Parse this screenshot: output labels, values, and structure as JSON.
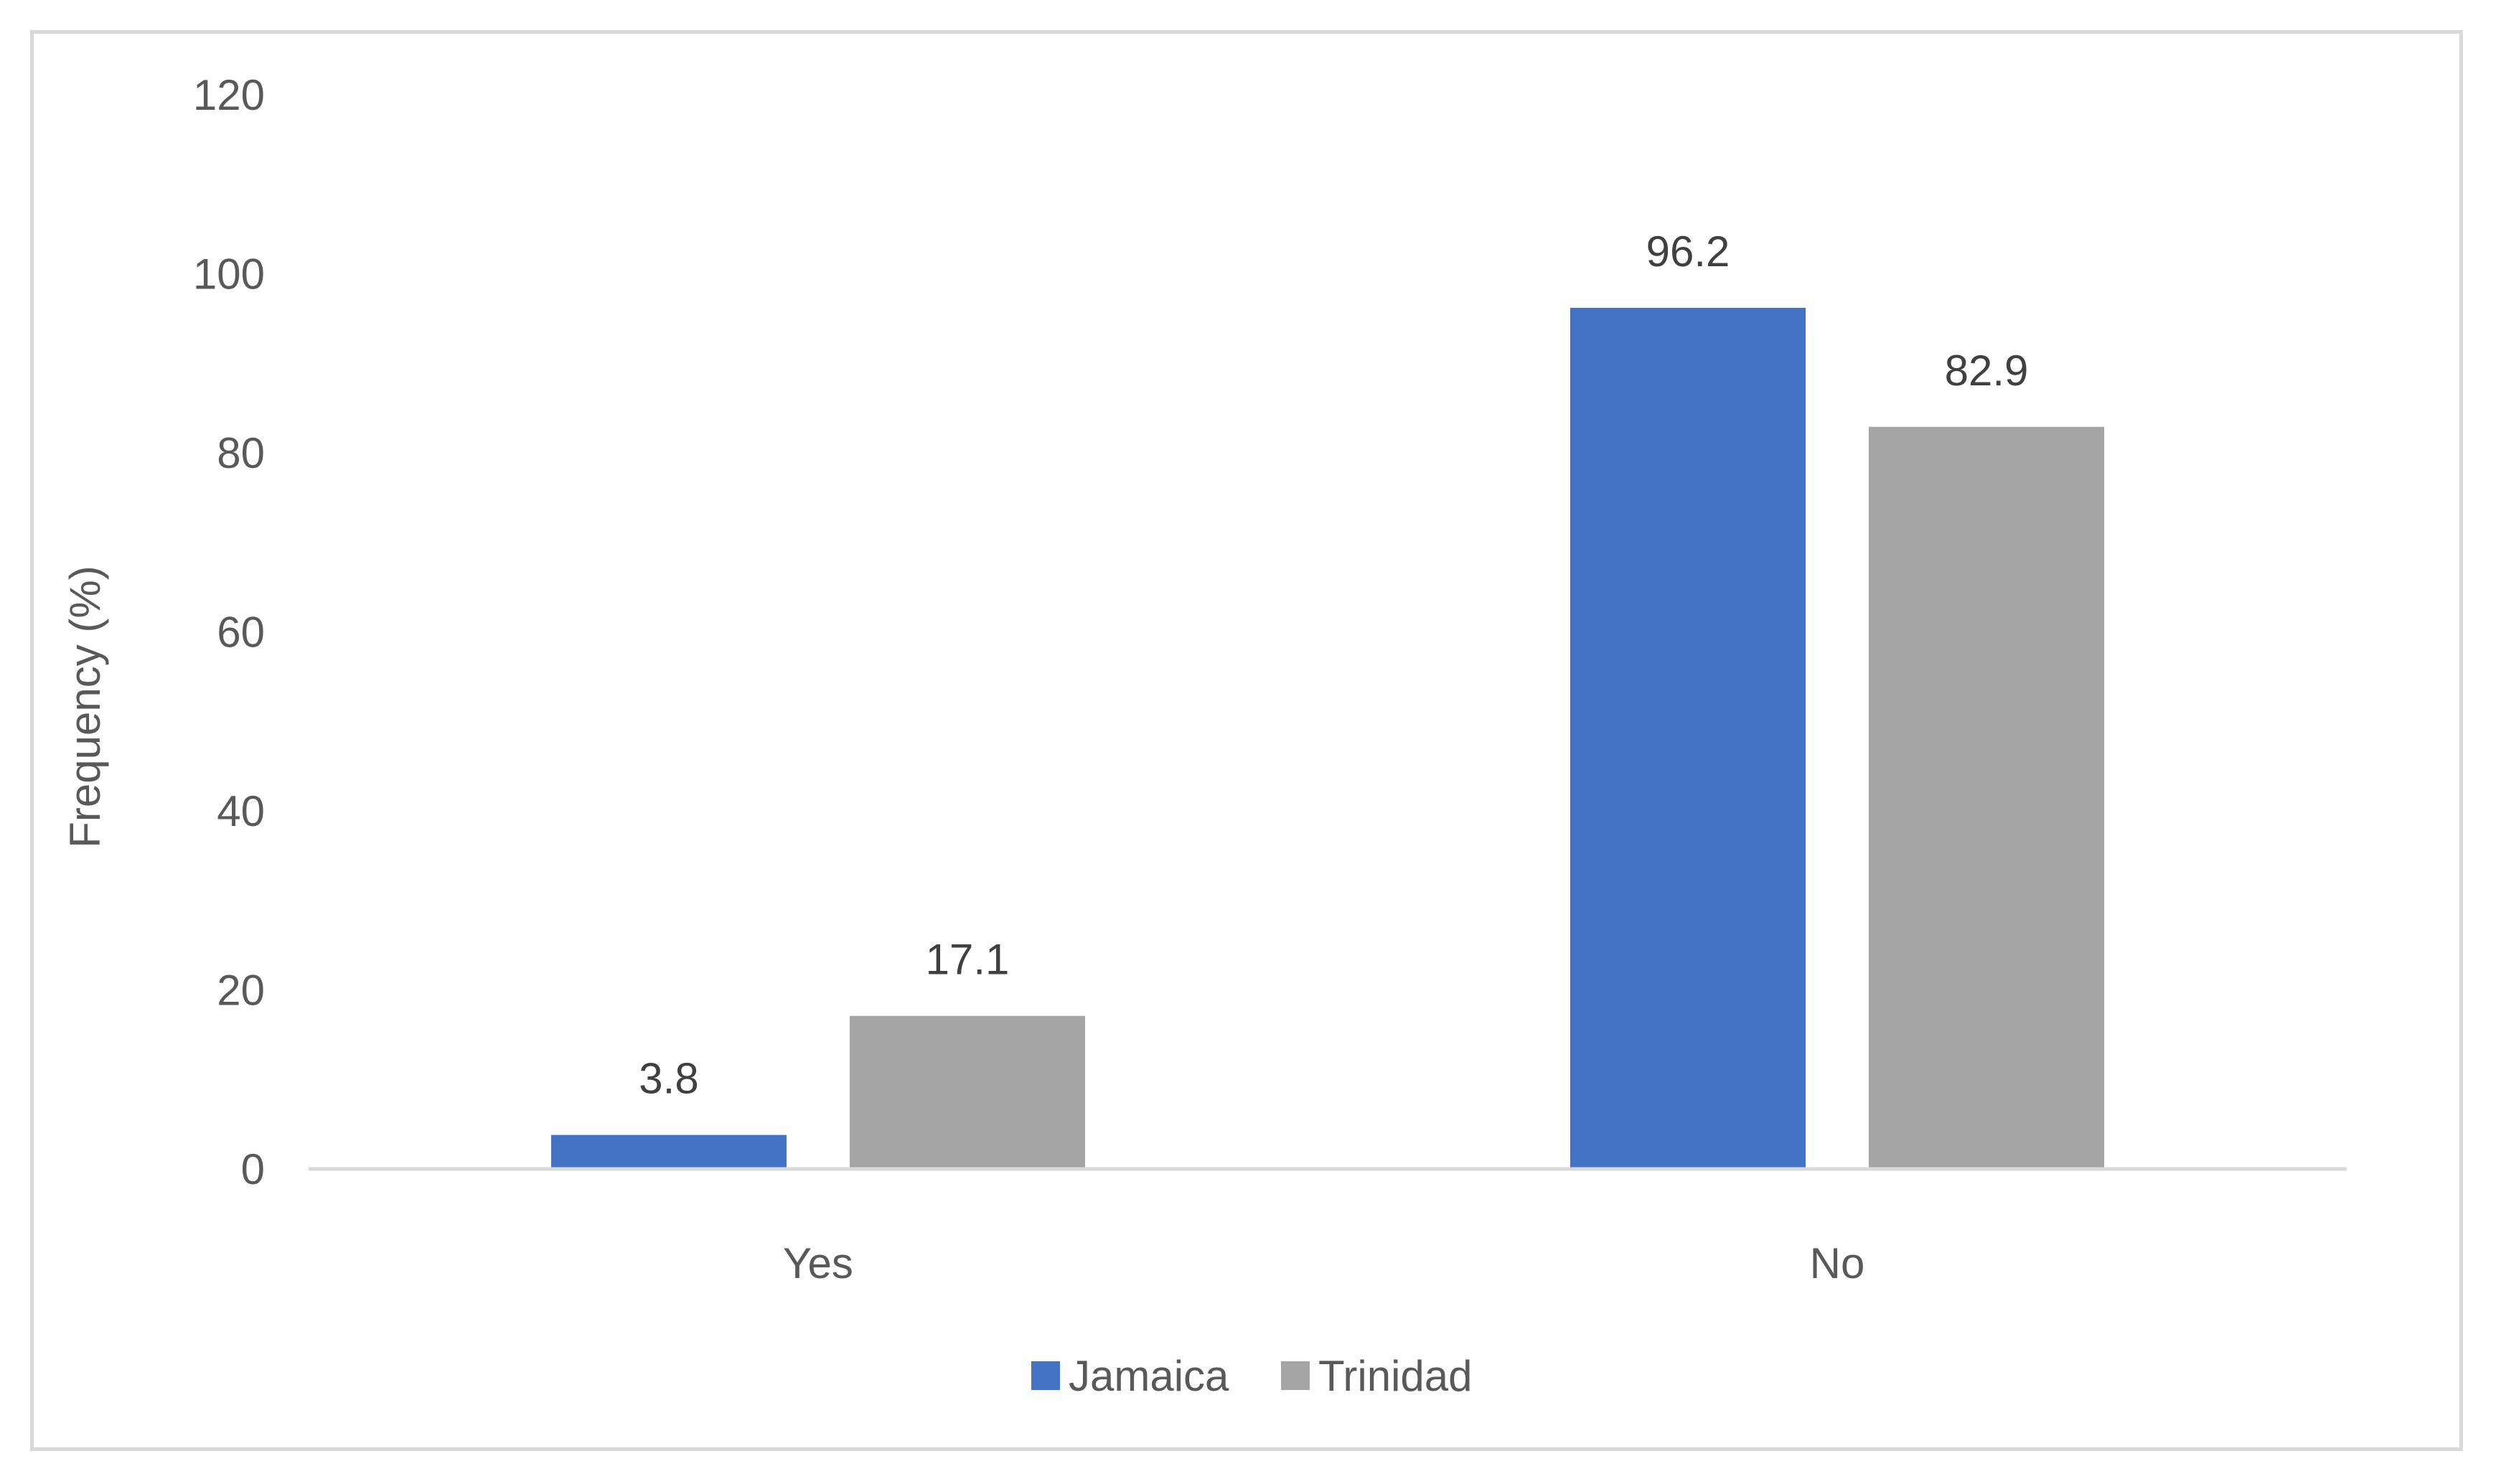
{
  "chart_data": {
    "type": "bar",
    "categories": [
      "Yes",
      "No"
    ],
    "series": [
      {
        "name": "Jamaica",
        "values": [
          3.8,
          96.2
        ],
        "color": "#4472c4"
      },
      {
        "name": "Trinidad",
        "values": [
          17.1,
          82.9
        ],
        "color": "#a5a5a5"
      }
    ],
    "data_labels": [
      [
        "3.8",
        "96.2"
      ],
      [
        "17.1",
        "82.9"
      ]
    ],
    "title": "",
    "xlabel": "",
    "ylabel": "Frequency (%)",
    "ylim": [
      0,
      120
    ],
    "yticks": [
      "0",
      "20",
      "40",
      "60",
      "80",
      "100",
      "120"
    ],
    "grid": false,
    "legend": {
      "placement": "bottom",
      "entries": [
        "Jamaica",
        "Trinidad"
      ]
    },
    "colors": {
      "axis": "#d9d9d9",
      "tick_text": "#595959",
      "label_text": "#404040"
    }
  }
}
